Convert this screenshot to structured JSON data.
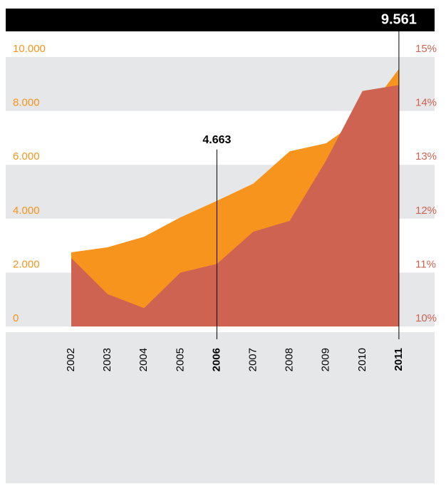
{
  "chart_data": {
    "type": "area",
    "categories": [
      "2002",
      "2003",
      "2004",
      "2005",
      "2006",
      "2007",
      "2008",
      "2009",
      "2010",
      "2011"
    ],
    "series": [
      {
        "name": null,
        "color": "#f7941d",
        "axis": "y",
        "values": [
          2750,
          2940,
          3330,
          4050,
          4663,
          5300,
          6500,
          6800,
          7750,
          9561
        ],
        "value_labels": [
          null,
          null,
          null,
          null,
          "4.663",
          null,
          null,
          null,
          null,
          "9.561"
        ]
      },
      {
        "name": null,
        "color": "#cf6352",
        "axis": "y2",
        "values": [
          11.27,
          10.6,
          10.34,
          11.0,
          11.16,
          11.76,
          11.96,
          13.08,
          14.37,
          14.48
        ]
      }
    ],
    "ylim": [
      0,
      10000
    ],
    "yticks": [
      0,
      {
        "value": 2000,
        "label": "2.000"
      },
      {
        "value": 4000,
        "label": "4.000"
      },
      {
        "value": 6000,
        "label": "6.000"
      },
      {
        "value": 8000,
        "label": "8.000"
      },
      {
        "value": 10000,
        "label": "10.000"
      }
    ],
    "y2lim": [
      10,
      15
    ],
    "y2ticks": [
      {
        "value": 10,
        "label": "10%"
      },
      {
        "value": 11,
        "label": "11%"
      },
      {
        "value": 12,
        "label": "12%"
      },
      {
        "value": 13,
        "label": "13%"
      },
      {
        "value": 14,
        "label": "14%"
      },
      {
        "value": 15,
        "label": "15%"
      }
    ],
    "grid": true
  }
}
